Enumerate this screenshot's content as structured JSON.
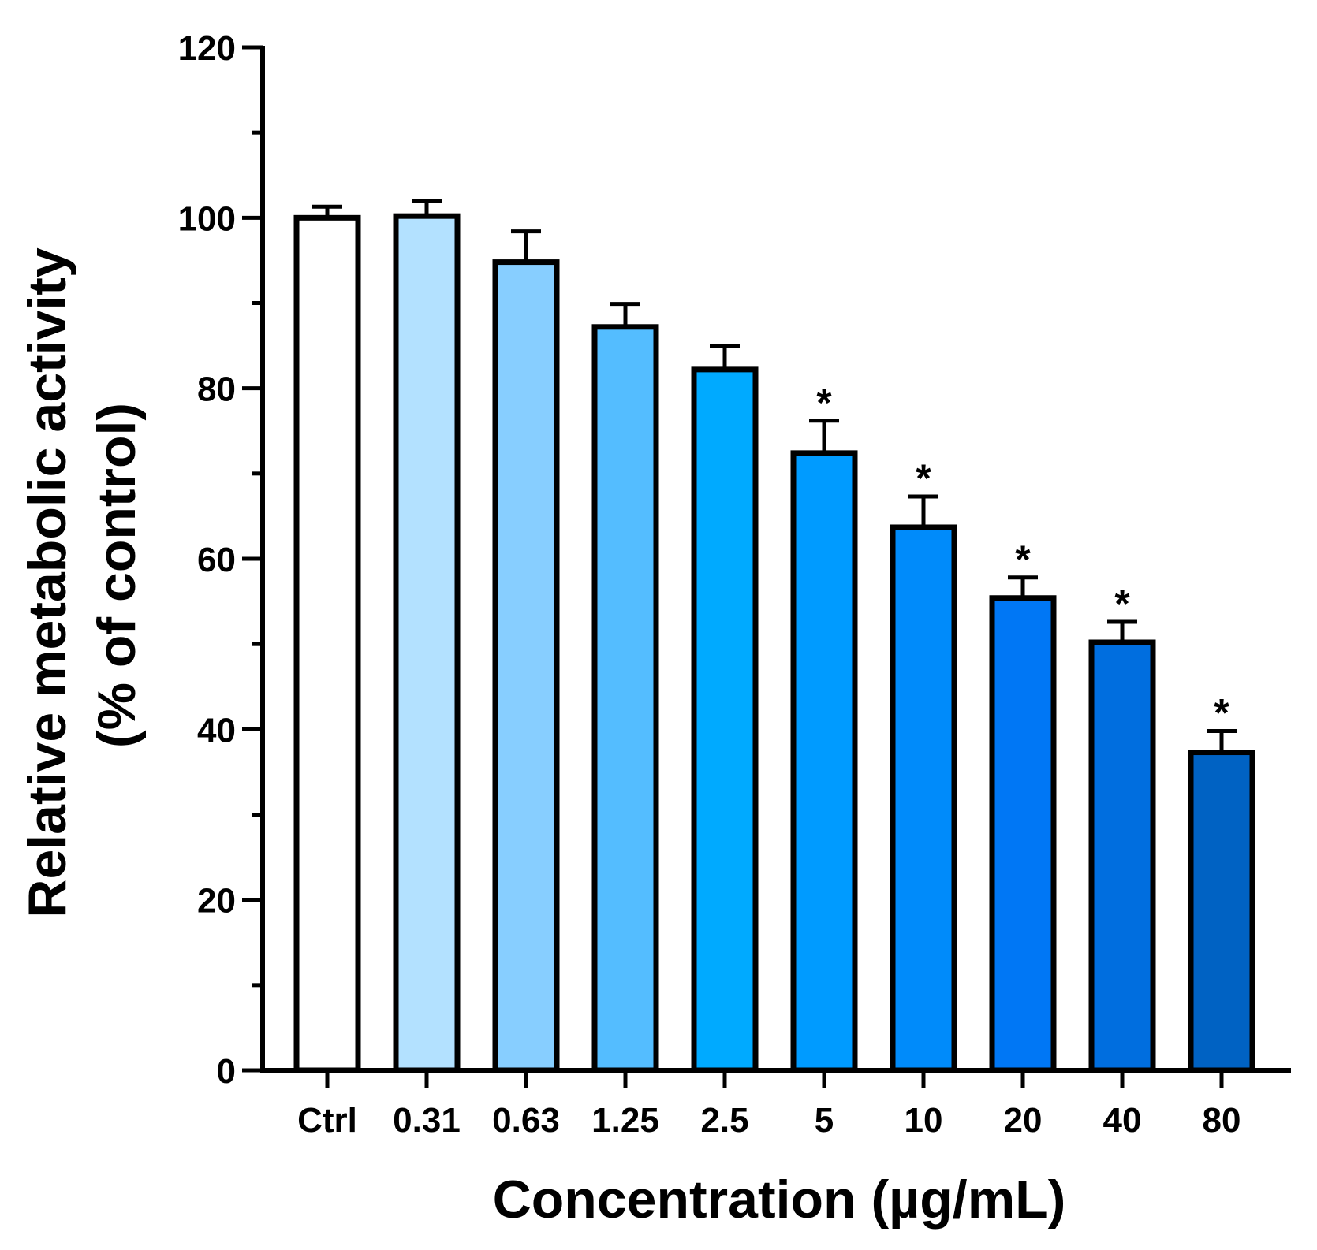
{
  "chart_data": {
    "type": "bar",
    "categories": [
      "Ctrl",
      "0.31",
      "0.63",
      "1.25",
      "2.5",
      "5",
      "10",
      "20",
      "40",
      "80"
    ],
    "values": [
      100,
      100.2,
      94.8,
      87.2,
      82.2,
      72.4,
      63.7,
      55.4,
      50.2,
      37.3
    ],
    "errors": [
      1.3,
      1.8,
      3.6,
      2.7,
      2.8,
      3.8,
      3.6,
      2.4,
      2.4,
      2.5
    ],
    "significance": [
      "",
      "",
      "",
      "",
      "",
      "*",
      "*",
      "*",
      "*",
      "*"
    ],
    "colors": [
      "#ffffff",
      "#b3e1ff",
      "#87ceff",
      "#54bdff",
      "#00aaff",
      "#009bff",
      "#008bfa",
      "#0077f5",
      "#006edf",
      "#0062c3"
    ],
    "ylabel_line1": "Relative metabolic activity",
    "ylabel_line2": "(% of control)",
    "xlabel": "Concentration (µg/mL)",
    "ylim": [
      0,
      120
    ],
    "yticks": [
      0,
      20,
      40,
      60,
      80,
      100,
      120
    ],
    "minor_step": 10,
    "grid": false
  }
}
